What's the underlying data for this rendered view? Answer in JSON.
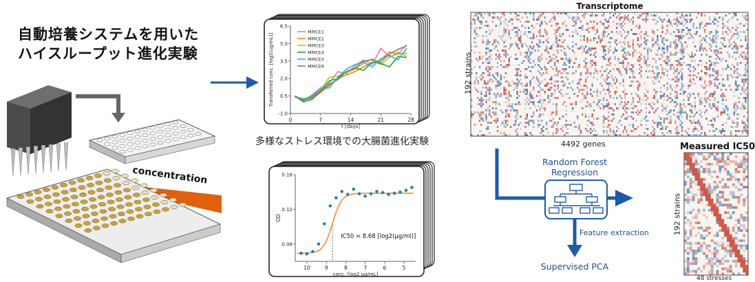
{
  "title": {
    "line1": "自動培養システムを用いた",
    "line2": "ハイスループット進化実験"
  },
  "left_panel": {
    "concentration_label": "concentration"
  },
  "evolution_plot": {
    "ylabel": "Transferred conc. [log2(ug/mL)]",
    "xlabel": "t [days]",
    "caption": "多様なストレス環境での大腸菌進化実験"
  },
  "dose_plot": {
    "ylabel": "OD",
    "xlabel": "conc. [log2 μg/mL]",
    "annotation": "IC50 = 8.68 [log2(μg/ml)]",
    "ic50_value": 8.68
  },
  "transcriptome": {
    "title": "Transcriptome",
    "ylabel": "192 strains",
    "xlabel": "4492 genes"
  },
  "measured": {
    "title": "Measured IC50",
    "ylabel": "192 strains",
    "xlabel": "48 stresses"
  },
  "pipeline": {
    "model_label_1": "Random Forest",
    "model_label_2": "Regression",
    "feature_label": "Feature extraction",
    "output_label": "Supervised PCA"
  },
  "colors": {
    "arrow_blue": "#1f5aa6",
    "orange_wedge": "#e0600e",
    "heat_red": "#c0392b",
    "heat_blue": "#2166ac"
  },
  "chart_data": [
    {
      "type": "line",
      "x_ticks": [
        "0",
        "7",
        "14",
        "21",
        "28"
      ],
      "y_ticks": [
        "6.5",
        "5.0",
        "3.5",
        "2.0",
        "0.5",
        "-1.0"
      ],
      "xlim": [
        0,
        28
      ],
      "ylim": [
        -1.0,
        6.5
      ],
      "xlabel": "t [days]",
      "ylabel": "Transferred conc. [log2(ug/mL)]",
      "x": [
        1,
        3,
        5,
        7,
        9,
        11,
        13,
        15,
        17,
        19,
        21,
        23,
        25,
        27
      ],
      "series": [
        {
          "name": "MMCE1",
          "color": "#e377c2",
          "values": [
            0.5,
            0.1,
            0.6,
            1.2,
            1.6,
            2.6,
            2.4,
            3.1,
            3.6,
            3.2,
            4.6,
            3.9,
            4.1,
            4.9
          ]
        },
        {
          "name": "MMCE2",
          "color": "#ff7f0e",
          "values": [
            0.5,
            0.2,
            0.3,
            0.8,
            1.4,
            2.0,
            2.3,
            2.6,
            3.0,
            3.4,
            3.6,
            4.3,
            4.1,
            4.2
          ]
        },
        {
          "name": "MMCE3",
          "color": "#bcbd22",
          "values": [
            0.4,
            0.3,
            0.4,
            1.0,
            2.1,
            2.2,
            2.5,
            2.8,
            3.3,
            3.7,
            3.2,
            3.8,
            4.3,
            3.9
          ]
        },
        {
          "name": "MMCE4",
          "color": "#2ca02c",
          "values": [
            0.5,
            0.0,
            0.2,
            0.9,
            1.8,
            2.0,
            2.6,
            2.9,
            2.7,
            3.4,
            3.3,
            3.0,
            3.9,
            3.8
          ]
        },
        {
          "name": "MMCE5",
          "color": "#17becf",
          "values": [
            0.4,
            0.2,
            0.5,
            1.1,
            1.2,
            2.1,
            2.8,
            3.2,
            3.4,
            3.0,
            3.7,
            4.0,
            3.6,
            4.6
          ]
        },
        {
          "name": "MMCE6",
          "color": "#7f7f7f",
          "values": [
            0.5,
            0.1,
            0.4,
            0.9,
            1.5,
            1.9,
            2.6,
            2.9,
            3.5,
            3.6,
            3.4,
            4.1,
            4.5,
            4.8
          ]
        }
      ]
    },
    {
      "type": "scatter",
      "xlabel": "conc. [log2 μg/mL]",
      "ylabel": "OD",
      "x_ticks": [
        "10",
        "9",
        "8",
        "7",
        "6",
        "5"
      ],
      "y_ticks": [
        "0.18",
        "0.12",
        "0.06"
      ],
      "xlim": [
        10.6,
        4.4
      ],
      "ylim": [
        0.03,
        0.18
      ],
      "x": [
        10.3,
        10.0,
        9.7,
        9.4,
        9.1,
        8.8,
        8.5,
        8.2,
        7.9,
        7.6,
        7.3,
        7.0,
        6.7,
        6.4,
        6.1,
        5.8,
        5.5,
        5.2,
        4.9,
        4.6
      ],
      "values": [
        0.044,
        0.043,
        0.047,
        0.06,
        0.095,
        0.126,
        0.14,
        0.151,
        0.146,
        0.155,
        0.147,
        0.143,
        0.147,
        0.151,
        0.149,
        0.146,
        0.148,
        0.15,
        0.153,
        0.158
      ],
      "fit_label": "IC50 = 8.68 [log2(μg/ml)]"
    }
  ]
}
